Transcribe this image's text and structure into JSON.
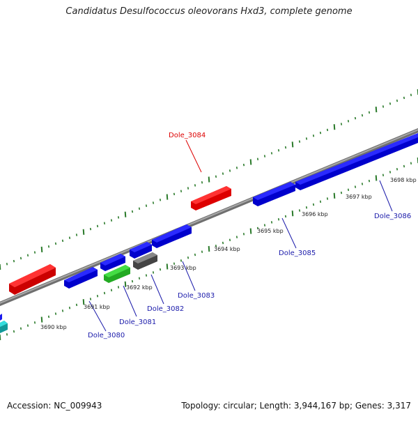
{
  "title": "Candidatus Desulfococcus oleovorans Hxd3, complete genome",
  "accession": "Accession: NC_009943",
  "summary": "Topology: circular; Length: 3,944,167 bp; Genes: 3,317",
  "colors": {
    "backbone": "#888888",
    "tick": "#2a7a2a",
    "forward_gene": "#ff1a1a",
    "reverse_gene": "#1a1aee",
    "label_forward": "#dd0000",
    "label_reverse": "#1a1aaa",
    "tick_label": "#222222"
  },
  "scale_labels": [
    {
      "text": "3690 kbp",
      "kbp": 3690
    },
    {
      "text": "3691 kbp",
      "kbp": 3691
    },
    {
      "text": "3692 kbp",
      "kbp": 3692
    },
    {
      "text": "3693 kbp",
      "kbp": 3693
    },
    {
      "text": "3694 kbp",
      "kbp": 3694
    },
    {
      "text": "3695 kbp",
      "kbp": 3695
    },
    {
      "text": "3696 kbp",
      "kbp": 3696
    },
    {
      "text": "3697 kbp",
      "kbp": 3697
    },
    {
      "text": "3698 kbp",
      "kbp": 3698
    }
  ],
  "gene_labels": [
    {
      "text": "Dole_3084",
      "strand": "forward"
    },
    {
      "text": "Dole_3080",
      "strand": "reverse"
    },
    {
      "text": "Dole_3081",
      "strand": "reverse"
    },
    {
      "text": "Dole_3082",
      "strand": "reverse"
    },
    {
      "text": "Dole_3083",
      "strand": "reverse"
    },
    {
      "text": "Dole_3085",
      "strand": "reverse"
    },
    {
      "text": "Dole_3086",
      "strand": "reverse"
    }
  ],
  "features": [
    {
      "id": "f1",
      "color": "#ff1a1a",
      "strand": "forward",
      "label": ""
    },
    {
      "id": "f2",
      "color": "#ff1a1a",
      "strand": "forward",
      "label": "Dole_3084"
    },
    {
      "id": "f3",
      "color": "#1a1aee",
      "strand": "forward",
      "label": ""
    },
    {
      "id": "f4",
      "color": "#1a1aee",
      "strand": "forward",
      "label": ""
    },
    {
      "id": "f5",
      "color": "#1a1aee",
      "strand": "forward",
      "label": ""
    },
    {
      "id": "f6",
      "color": "#1a1aee",
      "strand": "forward",
      "label": ""
    },
    {
      "id": "f7",
      "color": "#1a1aee",
      "strand": "forward",
      "label": ""
    },
    {
      "id": "f8",
      "color": "#1a1aee",
      "strand": "forward",
      "label": ""
    },
    {
      "id": "f9",
      "color": "#33cc33",
      "strand": "forward",
      "label": ""
    },
    {
      "id": "f10",
      "color": "#666666",
      "strand": "forward",
      "label": ""
    },
    {
      "id": "f11",
      "color": "#1acccc",
      "strand": "forward",
      "label": ""
    }
  ]
}
